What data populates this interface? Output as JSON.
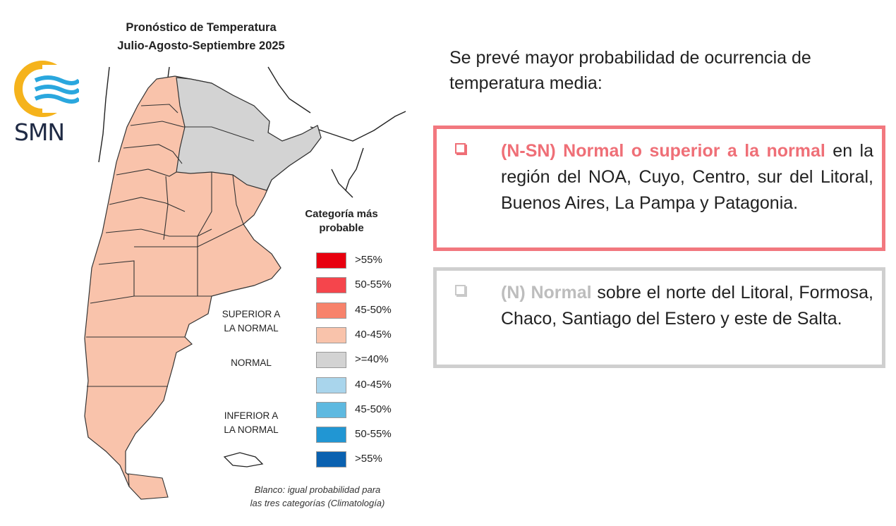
{
  "map": {
    "title_line1": "Pronóstico de Temperatura",
    "title_line2": "Julio-Agosto-Septiembre 2025",
    "logo_text": "SMN",
    "legend_heading_line1": "Categoría más",
    "legend_heading_line2": "probable",
    "legend_groups": [
      {
        "label_line1": "SUPERIOR A",
        "label_line2": "LA NORMAL"
      },
      {
        "label_line1": "NORMAL",
        "label_line2": ""
      },
      {
        "label_line1": "INFERIOR A",
        "label_line2": "LA NORMAL"
      }
    ],
    "legend_items": [
      {
        "label": ">55%",
        "color": "#e8000f"
      },
      {
        "label": "50-55%",
        "color": "#f5454c"
      },
      {
        "label": "45-50%",
        "color": "#f7826b"
      },
      {
        "label": "40-45%",
        "color": "#f9c3ab"
      },
      {
        "label": ">=40%",
        "color": "#d3d3d3"
      },
      {
        "label": "40-45%",
        "color": "#a9d5ec"
      },
      {
        "label": "45-50%",
        "color": "#5eb9e0"
      },
      {
        "label": "50-55%",
        "color": "#2196d3"
      },
      {
        "label": ">55%",
        "color": "#0a61b0"
      }
    ],
    "footnote_line1": "Blanco: igual probabilidad para",
    "footnote_line2": "las tres categorías (Climatología)",
    "colors": {
      "warm_region": "#f9c3ab",
      "normal_region": "#d3d3d3",
      "border": "#333333"
    }
  },
  "text": {
    "intro": "Se prevé mayor probabilidad de ocurrencia de temperatura media:",
    "box1": {
      "key": "(N-SN) Normal o superior a la normal",
      "body": " en la región del NOA, Cuyo, Centro, sur del Litoral, Buenos Aires, La Pampa y Patagonia.",
      "color": "#ef6f77"
    },
    "box2": {
      "key": "(N) Normal",
      "body": " sobre el norte del Litoral, Formosa, Chaco, Santiago del Estero y este de Salta.",
      "color": "#cfcfcf"
    }
  }
}
